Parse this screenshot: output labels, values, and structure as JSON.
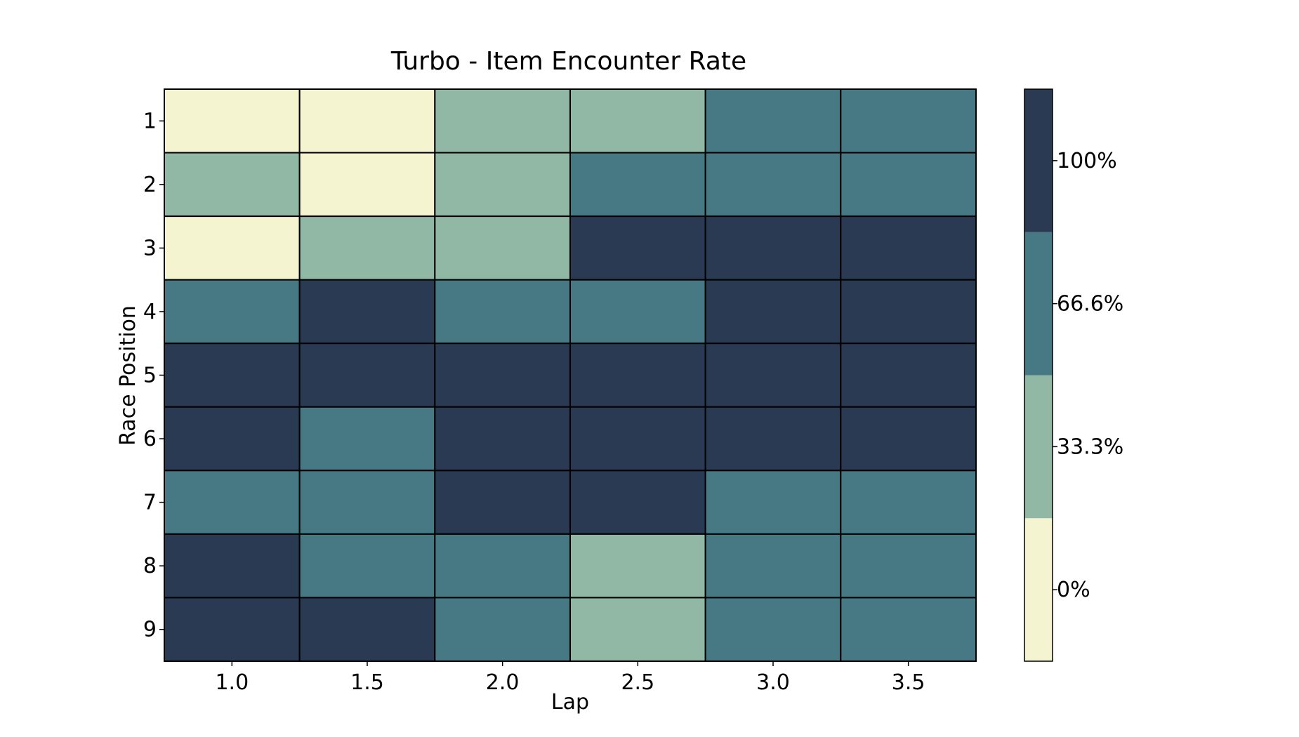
{
  "chart_data": {
    "type": "heatmap",
    "title": "Turbo - Item Encounter Rate",
    "xlabel": "Lap",
    "ylabel": "Race Position",
    "x_categories": [
      "1.0",
      "1.5",
      "2.0",
      "2.5",
      "3.0",
      "3.5"
    ],
    "y_categories": [
      "1",
      "2",
      "3",
      "4",
      "5",
      "6",
      "7",
      "8",
      "9"
    ],
    "values": [
      [
        0,
        0,
        33.3,
        33.3,
        66.6,
        66.6
      ],
      [
        33.3,
        0,
        33.3,
        66.6,
        66.6,
        66.6
      ],
      [
        0,
        33.3,
        33.3,
        100,
        100,
        100
      ],
      [
        66.6,
        100,
        66.6,
        66.6,
        100,
        100
      ],
      [
        100,
        100,
        100,
        100,
        100,
        100
      ],
      [
        100,
        66.6,
        100,
        100,
        100,
        100
      ],
      [
        66.6,
        66.6,
        100,
        100,
        66.6,
        66.6
      ],
      [
        100,
        66.6,
        66.6,
        33.3,
        66.6,
        66.6
      ],
      [
        100,
        100,
        66.6,
        33.3,
        66.6,
        66.6
      ]
    ],
    "unit": "%",
    "colorbar": {
      "levels": [
        0,
        33.3,
        66.6,
        100
      ],
      "tick_labels": [
        "0%",
        "33.3%",
        "66.6%",
        "100%"
      ],
      "colors": [
        "#f4f4d0",
        "#90b8a4",
        "#477985",
        "#293a52"
      ]
    },
    "grid": false,
    "legend": "colorbar-right"
  }
}
